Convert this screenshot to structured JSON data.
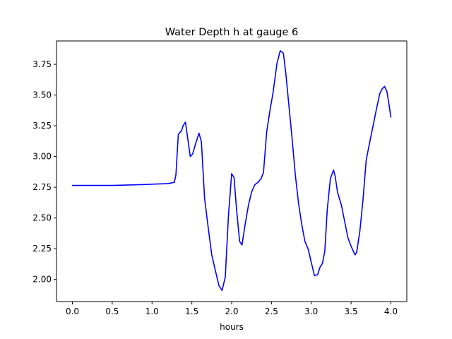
{
  "chart_data": {
    "type": "line",
    "title": "Water Depth h at gauge 6",
    "xlabel": "hours",
    "ylabel": "",
    "xlim": [
      -0.2,
      4.2
    ],
    "ylim": [
      1.82,
      3.94
    ],
    "xticks": [
      0.0,
      0.5,
      1.0,
      1.5,
      2.0,
      2.5,
      3.0,
      3.5,
      4.0
    ],
    "xtick_labels": [
      "0.0",
      "0.5",
      "1.0",
      "1.5",
      "2.0",
      "2.5",
      "3.0",
      "3.5",
      "4.0"
    ],
    "yticks": [
      2.0,
      2.25,
      2.5,
      2.75,
      3.0,
      3.25,
      3.5,
      3.75
    ],
    "ytick_labels": [
      "2.00",
      "2.25",
      "2.50",
      "2.75",
      "3.00",
      "3.25",
      "3.50",
      "3.75"
    ],
    "grid": false,
    "legend": "none",
    "series": [
      {
        "color": "#0000ff",
        "x": [
          0.0,
          0.5,
          0.9,
          1.0,
          1.2,
          1.28,
          1.3,
          1.33,
          1.37,
          1.39,
          1.42,
          1.45,
          1.48,
          1.51,
          1.55,
          1.59,
          1.62,
          1.66,
          1.7,
          1.75,
          1.8,
          1.84,
          1.88,
          1.92,
          1.96,
          2.0,
          2.03,
          2.06,
          2.1,
          2.13,
          2.17,
          2.21,
          2.25,
          2.29,
          2.33,
          2.37,
          2.4,
          2.44,
          2.48,
          2.52,
          2.57,
          2.61,
          2.65,
          2.68,
          2.72,
          2.76,
          2.8,
          2.84,
          2.88,
          2.92,
          2.96,
          3.0,
          3.04,
          3.08,
          3.11,
          3.14,
          3.17,
          3.2,
          3.24,
          3.28,
          3.3,
          3.33,
          3.38,
          3.42,
          3.46,
          3.5,
          3.55,
          3.57,
          3.61,
          3.65,
          3.69,
          3.72,
          3.77,
          3.82,
          3.86,
          3.89,
          3.92,
          3.95,
          3.97,
          4.0
        ],
        "y": [
          2.765,
          2.765,
          2.772,
          2.775,
          2.78,
          2.79,
          2.85,
          3.18,
          3.21,
          3.25,
          3.28,
          3.14,
          3.0,
          3.02,
          3.11,
          3.19,
          3.12,
          2.66,
          2.45,
          2.2,
          2.06,
          1.95,
          1.91,
          2.02,
          2.52,
          2.86,
          2.83,
          2.58,
          2.31,
          2.28,
          2.45,
          2.6,
          2.71,
          2.77,
          2.79,
          2.82,
          2.87,
          3.2,
          3.37,
          3.52,
          3.76,
          3.86,
          3.84,
          3.68,
          3.41,
          3.14,
          2.85,
          2.62,
          2.45,
          2.31,
          2.25,
          2.14,
          2.03,
          2.04,
          2.1,
          2.13,
          2.23,
          2.56,
          2.82,
          2.89,
          2.84,
          2.71,
          2.6,
          2.47,
          2.34,
          2.27,
          2.2,
          2.22,
          2.39,
          2.65,
          2.97,
          3.07,
          3.23,
          3.39,
          3.51,
          3.55,
          3.57,
          3.53,
          3.45,
          3.32
        ]
      }
    ]
  }
}
